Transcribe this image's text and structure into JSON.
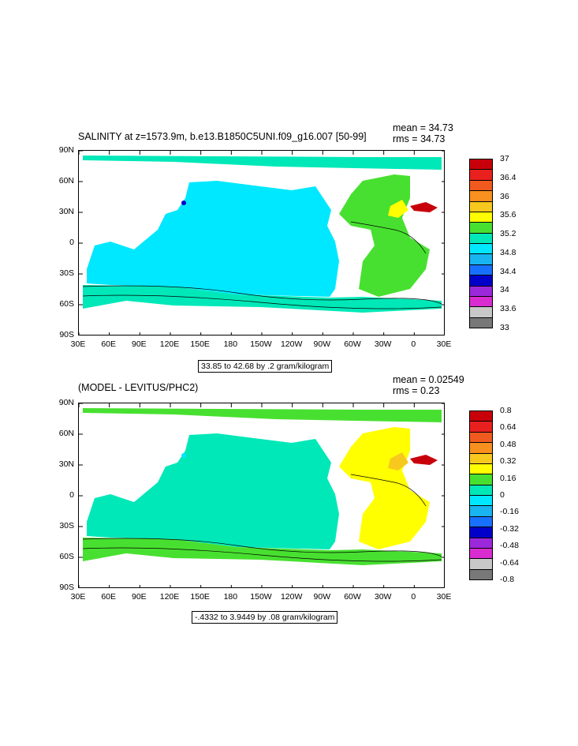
{
  "panels": [
    {
      "title_left": "SALINITY at z=1573.9m, b.e13.B1850C5UNI.f09_g16.007 [50-99]",
      "mean": "mean = 34.73",
      "rms": "rms = 34.73",
      "info": "33.85 to 42.68 by .2 gram/kilogram",
      "lat_labels": [
        "90N",
        "60N",
        "30N",
        "0",
        "30S",
        "60S",
        "90S"
      ],
      "lon_labels": [
        "30E",
        "60E",
        "90E",
        "120E",
        "150E",
        "180",
        "150W",
        "120W",
        "90W",
        "60W",
        "30W",
        "0",
        "30E"
      ],
      "colorbar": {
        "labels": [
          "37",
          "36.4",
          "36",
          "35.6",
          "35.2",
          "34.8",
          "34.4",
          "34",
          "33.6",
          "33"
        ],
        "colors": [
          "#c8000a",
          "#e8201e",
          "#f05a1e",
          "#f7901e",
          "#f7c81e",
          "#ffff00",
          "#48e030",
          "#00e8b8",
          "#00e8ff",
          "#18b4f0",
          "#1870ff",
          "#0000c8",
          "#9c28dc",
          "#d82cd0",
          "#c8c8c8",
          "#787878"
        ]
      },
      "fields": {
        "ocean_main": "#00e8ff",
        "southern": "#00e8b8",
        "atlantic": "#48e030",
        "med": "#c8000a",
        "warm": "#ffff00",
        "arctic": "#00e8b8",
        "deep": "#0000c8"
      }
    },
    {
      "title_left": "(MODEL - LEVITUS/PHC2)",
      "mean": "mean = 0.02549",
      "rms": "rms = 0.23",
      "info": "-.4332 to 3.9449 by .08 gram/kilogram",
      "lat_labels": [
        "90N",
        "60N",
        "30N",
        "0",
        "30S",
        "60S",
        "90S"
      ],
      "lon_labels": [
        "30E",
        "60E",
        "90E",
        "120E",
        "150E",
        "180",
        "150W",
        "120W",
        "90W",
        "60W",
        "30W",
        "0",
        "30E"
      ],
      "colorbar": {
        "labels": [
          "0.8",
          "0.64",
          "0.48",
          "0.32",
          "0.16",
          "0",
          "-0.16",
          "-0.32",
          "-0.48",
          "-0.64",
          "-0.8"
        ],
        "colors": [
          "#c8000a",
          "#e8201e",
          "#f05a1e",
          "#f7901e",
          "#f7c81e",
          "#ffff00",
          "#48e030",
          "#00e8b8",
          "#00e8ff",
          "#18b4f0",
          "#1870ff",
          "#0000c8",
          "#9c28dc",
          "#d82cd0",
          "#c8c8c8",
          "#787878"
        ]
      },
      "fields": {
        "ocean_main": "#00e8b8",
        "southern": "#48e030",
        "atlantic": "#ffff00",
        "med": "#c8000a",
        "warm": "#f7c81e",
        "arctic": "#48e030",
        "deep": "#00e8ff"
      }
    }
  ]
}
